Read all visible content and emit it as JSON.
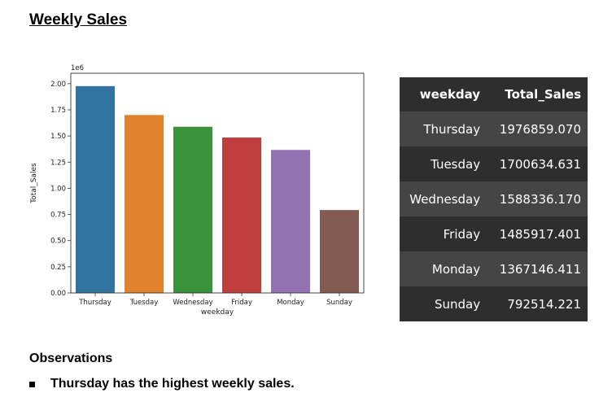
{
  "page": {
    "title": "Weekly Sales",
    "observations_title": "Observations",
    "observations": [
      "Thursday has the highest weekly sales."
    ]
  },
  "table": {
    "headers": [
      "weekday",
      "Total_Sales"
    ],
    "rows": [
      [
        "Thursday",
        "1976859.070"
      ],
      [
        "Tuesday",
        "1700634.631"
      ],
      [
        "Wednesday",
        "1588336.170"
      ],
      [
        "Friday",
        "1485917.401"
      ],
      [
        "Monday",
        "1367146.411"
      ],
      [
        "Sunday",
        "792514.221"
      ]
    ]
  },
  "chart_data": {
    "type": "bar",
    "categories": [
      "Thursday",
      "Tuesday",
      "Wednesday",
      "Friday",
      "Monday",
      "Sunday"
    ],
    "values": [
      1976859.07,
      1700634.631,
      1588336.17,
      1485917.401,
      1367146.411,
      792514.221
    ],
    "colors": [
      "#3274a1",
      "#e1812c",
      "#3a923a",
      "#c03d3e",
      "#9372b2",
      "#845b53"
    ],
    "title": "",
    "xlabel": "weekday",
    "ylabel": "Total_Sales",
    "scale_label": "1e6",
    "ylim": [
      0,
      2100000
    ],
    "yticks": [
      0,
      250000,
      500000,
      750000,
      1000000,
      1250000,
      1500000,
      1750000,
      2000000
    ],
    "ytick_labels": [
      "0.00",
      "0.25",
      "0.50",
      "0.75",
      "1.00",
      "1.25",
      "1.50",
      "1.75",
      "2.00"
    ],
    "grid": false,
    "legend": "none"
  }
}
